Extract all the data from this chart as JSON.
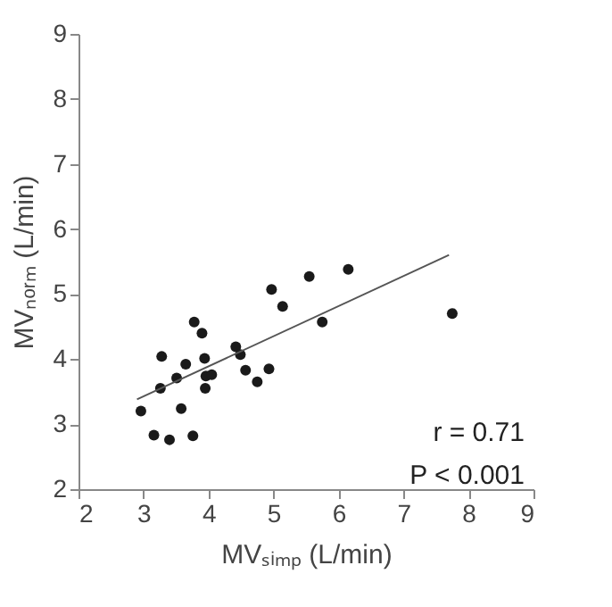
{
  "chart_data": {
    "type": "scatter",
    "xlabel": "MVₛᵢₘₚ (L/min)",
    "ylabel": "MVₙₒᵣₘ (L/min)",
    "xlim": [
      2,
      9
    ],
    "ylim": [
      2,
      9
    ],
    "xticks": [
      2,
      3,
      4,
      5,
      6,
      7,
      8,
      9
    ],
    "yticks": [
      2,
      3,
      4,
      5,
      6,
      7,
      8,
      9
    ],
    "grid": false,
    "series": [
      {
        "marker": "circle",
        "color": "#1a1a1a",
        "x": [
          2.96,
          3.16,
          3.4,
          3.76,
          3.28,
          3.26,
          3.51,
          3.58,
          3.65,
          3.78,
          3.9,
          3.94,
          3.96,
          4.05,
          3.95,
          4.42,
          4.49,
          4.57,
          4.75,
          4.93,
          4.97,
          5.14,
          5.55,
          5.75,
          6.15,
          7.75
        ],
        "values": [
          3.2,
          2.83,
          2.76,
          2.82,
          4.04,
          3.55,
          3.71,
          3.24,
          3.92,
          4.57,
          4.4,
          4.01,
          3.74,
          3.76,
          3.55,
          4.19,
          4.07,
          3.83,
          3.65,
          3.85,
          5.07,
          4.81,
          5.27,
          4.57,
          5.38,
          4.7
        ]
      },
      {
        "type": "line",
        "marker": "none",
        "color": "#555555",
        "x": [
          2.9,
          7.7
        ],
        "values": [
          3.38,
          5.6
        ]
      }
    ],
    "annotations": [
      "r = 0.71",
      "P < 0.001"
    ]
  }
}
